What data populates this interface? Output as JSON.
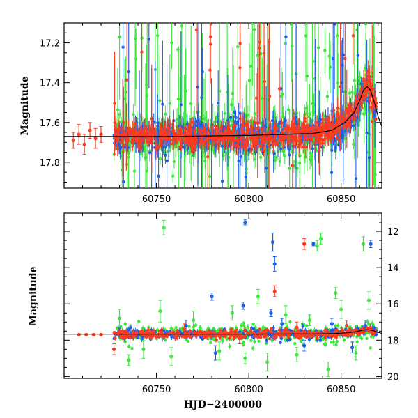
{
  "chart_data": [
    {
      "type": "scatter",
      "panel": "top",
      "title": "",
      "xlabel": "",
      "ylabel": "Magnitude",
      "xlim": [
        60700,
        60872
      ],
      "ylim": [
        17.93,
        17.1
      ],
      "y_inverted": true,
      "x_ticks": [
        60750,
        60800,
        60850
      ],
      "x_tick_labels": [
        "60750",
        "60800",
        "60850"
      ],
      "y_ticks": [
        17.2,
        17.4,
        17.6,
        17.8
      ],
      "y_tick_labels": [
        "17.2",
        "17.4",
        "17.6",
        "17.8"
      ],
      "grid": false,
      "legend": "none",
      "model_curve": {
        "x": [
          60700,
          60760,
          60800,
          60820,
          60835,
          60845,
          60852,
          60857,
          60860,
          60862,
          60864,
          60866,
          60868,
          60870,
          60872
        ],
        "y": [
          17.67,
          17.67,
          17.665,
          17.66,
          17.655,
          17.64,
          17.6,
          17.55,
          17.49,
          17.44,
          17.42,
          17.44,
          17.5,
          17.57,
          17.62
        ]
      },
      "series": [
        {
          "color": "#ff3b1f",
          "points": [
            {
              "x": 60705,
              "y": 17.69,
              "err": 0.04
            },
            {
              "x": 60708,
              "y": 17.66,
              "err": 0.05
            },
            {
              "x": 60711,
              "y": 17.71,
              "err": 0.05
            },
            {
              "x": 60714,
              "y": 17.64,
              "err": 0.04
            },
            {
              "x": 60717,
              "y": 17.68,
              "err": 0.05
            },
            {
              "x": 60720,
              "y": 17.66,
              "err": 0.04
            }
          ]
        }
      ]
    },
    {
      "type": "scatter",
      "panel": "bottom",
      "title": "",
      "xlabel": "HJD−2400000",
      "ylabel": "Magnitude",
      "xlim": [
        60700,
        60872
      ],
      "ylim": [
        20.1,
        11.0
      ],
      "y_inverted": true,
      "x_ticks": [
        60750,
        60800,
        60850
      ],
      "x_tick_labels": [
        "60750",
        "60800",
        "60850"
      ],
      "y_ticks": [
        12,
        14,
        16,
        18,
        20
      ],
      "y_tick_labels": [
        "12",
        "14",
        "16",
        "18",
        "20"
      ],
      "grid": false,
      "legend": "none",
      "series": [
        {
          "color": "#3ee63e",
          "points": [
            {
              "x": 60754,
              "y": 11.8,
              "err": 0.4
            },
            {
              "x": 60837,
              "y": 12.8,
              "err": 0.3
            },
            {
              "x": 60839,
              "y": 12.4,
              "err": 0.3
            },
            {
              "x": 60847,
              "y": 15.4,
              "err": 0.3
            },
            {
              "x": 60862,
              "y": 12.7,
              "err": 0.4
            },
            {
              "x": 60730,
              "y": 16.8,
              "err": 0.5
            },
            {
              "x": 60735,
              "y": 19.1,
              "err": 0.3
            },
            {
              "x": 60743,
              "y": 18.5,
              "err": 0.5
            },
            {
              "x": 60752,
              "y": 16.4,
              "err": 0.6
            },
            {
              "x": 60758,
              "y": 18.9,
              "err": 0.5
            },
            {
              "x": 60770,
              "y": 16.9,
              "err": 0.5
            },
            {
              "x": 60784,
              "y": 18.6,
              "err": 0.5
            },
            {
              "x": 60791,
              "y": 16.5,
              "err": 0.4
            },
            {
              "x": 60798,
              "y": 19.0,
              "err": 0.3
            },
            {
              "x": 60805,
              "y": 15.6,
              "err": 0.4
            },
            {
              "x": 60810,
              "y": 19.2,
              "err": 0.5
            },
            {
              "x": 60820,
              "y": 16.6,
              "err": 0.5
            },
            {
              "x": 60826,
              "y": 18.8,
              "err": 0.4
            },
            {
              "x": 60833,
              "y": 16.9,
              "err": 0.3
            },
            {
              "x": 60843,
              "y": 19.6,
              "err": 0.4
            },
            {
              "x": 60850,
              "y": 16.3,
              "err": 0.5
            },
            {
              "x": 60858,
              "y": 18.7,
              "err": 0.4
            },
            {
              "x": 60865,
              "y": 15.8,
              "err": 0.5
            }
          ]
        },
        {
          "color": "#1f5fe6",
          "points": [
            {
              "x": 60798,
              "y": 11.5,
              "err": 0.15
            },
            {
              "x": 60813,
              "y": 12.6,
              "err": 0.5
            },
            {
              "x": 60814,
              "y": 13.8,
              "err": 0.4
            },
            {
              "x": 60835,
              "y": 12.7,
              "err": 0.1
            },
            {
              "x": 60866,
              "y": 12.7,
              "err": 0.2
            },
            {
              "x": 60780,
              "y": 15.6,
              "err": 0.2
            },
            {
              "x": 60797,
              "y": 16.1,
              "err": 0.2
            },
            {
              "x": 60812,
              "y": 16.5,
              "err": 0.2
            },
            {
              "x": 60766,
              "y": 17.2,
              "err": 0.3
            },
            {
              "x": 60782,
              "y": 18.7,
              "err": 0.4
            },
            {
              "x": 60818,
              "y": 17.1,
              "err": 0.3
            },
            {
              "x": 60830,
              "y": 18.3,
              "err": 0.3
            },
            {
              "x": 60845,
              "y": 17.1,
              "err": 0.3
            },
            {
              "x": 60856,
              "y": 18.4,
              "err": 0.3
            },
            {
              "x": 60863,
              "y": 17.2,
              "err": 0.3
            }
          ]
        },
        {
          "color": "#ff3b1f",
          "points": [
            {
              "x": 60830,
              "y": 12.7,
              "err": 0.3
            },
            {
              "x": 60814,
              "y": 15.3,
              "err": 0.3
            },
            {
              "x": 60727,
              "y": 18.5,
              "err": 0.3
            },
            {
              "x": 60765,
              "y": 17.4,
              "err": 0.3
            },
            {
              "x": 60795,
              "y": 17.9,
              "err": 0.3
            },
            {
              "x": 60826,
              "y": 17.3,
              "err": 0.3
            },
            {
              "x": 60853,
              "y": 17.2,
              "err": 0.3
            },
            {
              "x": 60708,
              "y": 17.7,
              "err": 0.05
            },
            {
              "x": 60712,
              "y": 17.7,
              "err": 0.05
            },
            {
              "x": 60716,
              "y": 17.7,
              "err": 0.05
            },
            {
              "x": 60720,
              "y": 17.7,
              "err": 0.05
            }
          ]
        }
      ]
    }
  ]
}
